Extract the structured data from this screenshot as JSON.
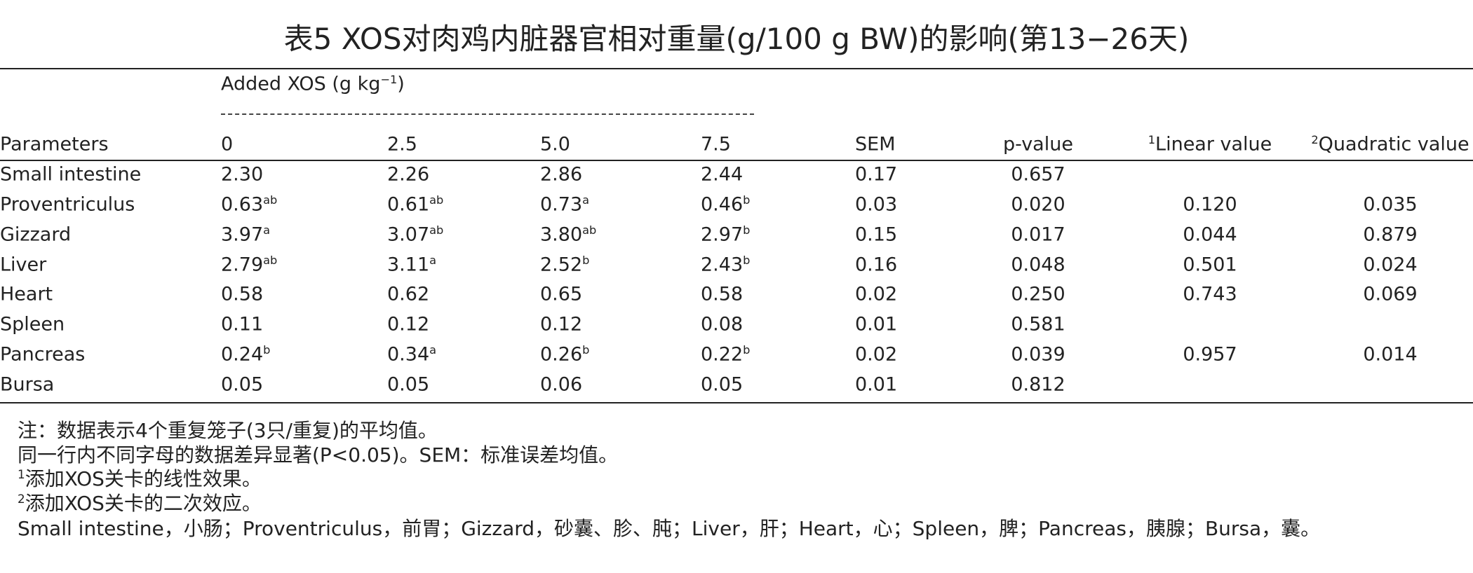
{
  "title": "表5 XOS对肉鸡内脏器官相对重量(g/100 g BW)的影响(第13−26天)",
  "table": {
    "group_header": {
      "text": "Added XOS (g kg",
      "sup": "−1",
      "tail": ")"
    },
    "columns": [
      {
        "text": "Parameters"
      },
      {
        "text": "0"
      },
      {
        "text": "2.5"
      },
      {
        "text": "5.0"
      },
      {
        "text": "7.5"
      },
      {
        "text": "SEM"
      },
      {
        "text": "p-value"
      },
      {
        "sup": "1",
        "text": "Linear value"
      },
      {
        "sup": "2",
        "text": "Quadratic value"
      }
    ],
    "rows": [
      {
        "parameter": "Small intestine",
        "values": [
          {
            "text": "2.30"
          },
          {
            "text": "2.26"
          },
          {
            "text": "2.86"
          },
          {
            "text": "2.44"
          }
        ],
        "sem": "0.17",
        "p": "0.657"
      },
      {
        "parameter": "Proventriculus",
        "values": [
          {
            "text": "0.63",
            "sup": "ab"
          },
          {
            "text": "0.61",
            "sup": "ab"
          },
          {
            "text": "0.73",
            "sup": "a"
          },
          {
            "text": "0.46",
            "sup": "b"
          }
        ],
        "sem": "0.03",
        "p": "0.020",
        "linear": "0.120",
        "quadratic": "0.035"
      },
      {
        "parameter": "Gizzard",
        "values": [
          {
            "text": "3.97",
            "sup": "a"
          },
          {
            "text": "3.07",
            "sup": "ab"
          },
          {
            "text": "3.80",
            "sup": "ab"
          },
          {
            "text": "2.97",
            "sup": "b"
          }
        ],
        "sem": "0.15",
        "p": "0.017",
        "linear": "0.044",
        "quadratic": "0.879"
      },
      {
        "parameter": "Liver",
        "values": [
          {
            "text": "2.79",
            "sup": "ab"
          },
          {
            "text": "3.11",
            "sup": "a"
          },
          {
            "text": "2.52",
            "sup": "b"
          },
          {
            "text": "2.43",
            "sup": "b"
          }
        ],
        "sem": "0.16",
        "p": "0.048",
        "linear": "0.501",
        "quadratic": "0.024"
      },
      {
        "parameter": "Heart",
        "values": [
          {
            "text": "0.58"
          },
          {
            "text": "0.62"
          },
          {
            "text": "0.65"
          },
          {
            "text": "0.58"
          }
        ],
        "sem": "0.02",
        "p": "0.250",
        "linear": "0.743",
        "quadratic": "0.069"
      },
      {
        "parameter": "Spleen",
        "values": [
          {
            "text": "0.11"
          },
          {
            "text": "0.12"
          },
          {
            "text": "0.12"
          },
          {
            "text": "0.08"
          }
        ],
        "sem": "0.01",
        "p": "0.581"
      },
      {
        "parameter": "Pancreas",
        "values": [
          {
            "text": "0.24",
            "sup": "b"
          },
          {
            "text": "0.34",
            "sup": "a"
          },
          {
            "text": "0.26",
            "sup": "b"
          },
          {
            "text": "0.22",
            "sup": "b"
          }
        ],
        "sem": "0.02",
        "p": "0.039",
        "linear": "0.957",
        "quadratic": "0.014"
      },
      {
        "parameter": "Bursa",
        "values": [
          {
            "text": "0.05"
          },
          {
            "text": "0.05"
          },
          {
            "text": "0.06"
          },
          {
            "text": "0.05"
          }
        ],
        "sem": "0.01",
        "p": "0.812"
      }
    ]
  },
  "notes": [
    {
      "text": "注：数据表示4个重复笼子(3只/重复)的平均值。"
    },
    {
      "text": "同一行内不同字母的数据差异显著(P<0.05)。SEM：标准误差均值。"
    },
    {
      "sup": "1",
      "text": "添加XOS关卡的线性效果。"
    },
    {
      "sup": "2",
      "text": "添加XOS关卡的二次效应。"
    },
    {
      "text": "Small intestine，小肠；Proventriculus，前胃；Gizzard，砂囊、胗、肫；Liver，肝；Heart，心；Spleen，脾；Pancreas，胰腺；Bursa，囊。"
    }
  ]
}
